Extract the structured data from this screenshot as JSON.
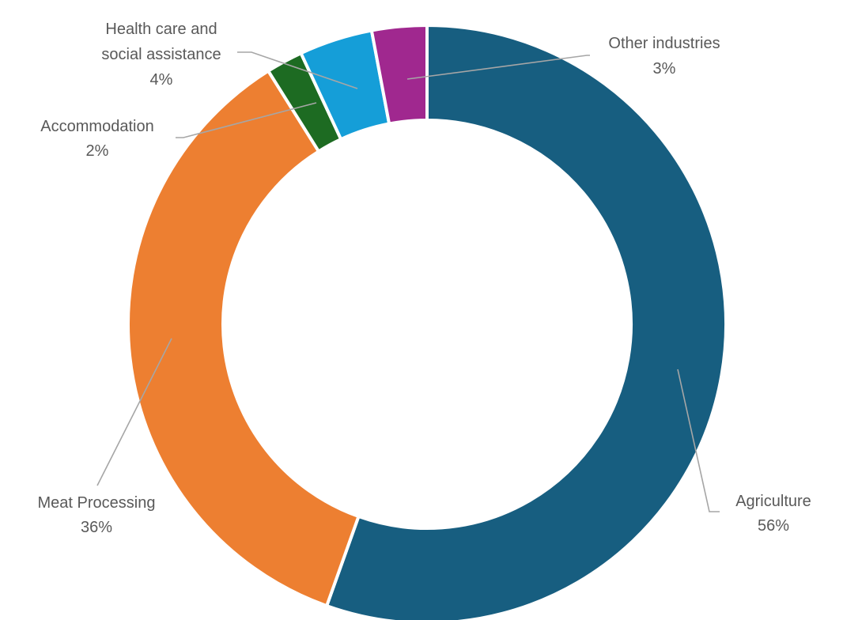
{
  "chart_data": {
    "type": "pie",
    "subtype": "donut",
    "title": "",
    "legend": "none",
    "categories": [
      "Agriculture",
      "Meat Processing",
      "Accommodation",
      "Health care and social assistance",
      "Other industries"
    ],
    "values": [
      56,
      36,
      2,
      4,
      3
    ],
    "data_labels": [
      "56%",
      "36%",
      "2%",
      "4%",
      "3%"
    ],
    "label_lines": [
      [
        "Agriculture",
        "56%"
      ],
      [
        "Meat Processing",
        "36%"
      ],
      [
        "Accommodation",
        "2%"
      ],
      [
        "Health care and",
        "social assistance",
        "4%"
      ],
      [
        "Other industries",
        "3%"
      ]
    ],
    "colors": [
      "#175e80",
      "#ed7f31",
      "#1d6b22",
      "#159ed8",
      "#a0288f"
    ],
    "start_angle": "12 o'clock",
    "direction": "clockwise"
  }
}
